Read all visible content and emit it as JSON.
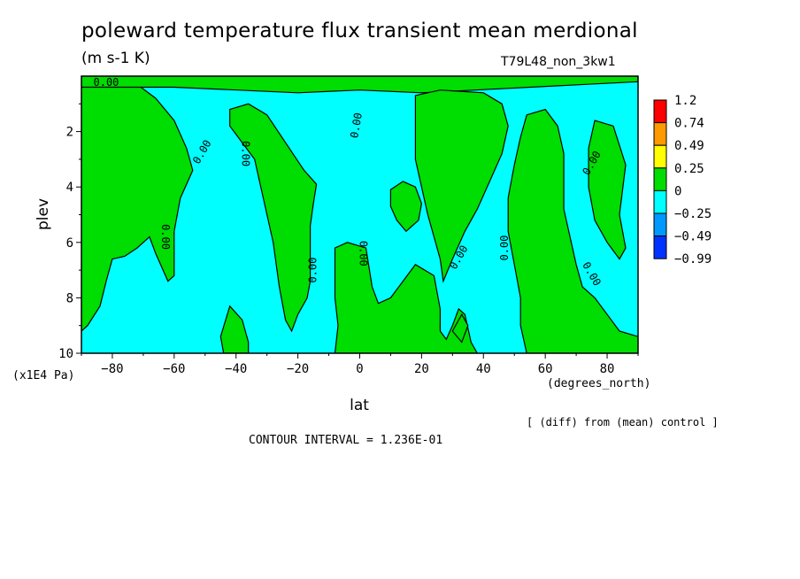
{
  "chart_data": {
    "type": "heatmap",
    "title": "poleward temperature flux transient mean merdional",
    "units": "(m s-1 K)",
    "run_label": "T79L48_non_3kw1",
    "xlabel": "lat",
    "x_units": "(degrees_north)",
    "ylabel": "plev",
    "y_units": "(x1E4 Pa)",
    "xlim": [
      -90,
      90
    ],
    "ylim": [
      10,
      0
    ],
    "x_ticks": [
      -80,
      -60,
      -40,
      -20,
      0,
      20,
      40,
      60,
      80
    ],
    "y_ticks": [
      2,
      4,
      6,
      8,
      10
    ],
    "colorbar": {
      "levels": [
        "1.2",
        "0.74",
        "0.49",
        "0.25",
        "0",
        "−0.25",
        "−0.49",
        "−0.99"
      ],
      "colors": [
        "#ff0000",
        "#ff9900",
        "#ffff00",
        "#00dd00",
        "#00ffff",
        "#0099ff",
        "#0033ff"
      ]
    },
    "contour_label": "0.00",
    "positive_regions": [
      {
        "lon_lat": [
          [
            -90,
            0.3
          ],
          [
            -72,
            0.3
          ],
          [
            -66,
            0.8
          ],
          [
            -60,
            1.6
          ],
          [
            -56,
            2.6
          ],
          [
            -54,
            3.4
          ],
          [
            -58,
            4.4
          ],
          [
            -60,
            5.6
          ],
          [
            -60,
            7.2
          ],
          [
            -62,
            7.4
          ],
          [
            -66,
            6.4
          ],
          [
            -68,
            5.8
          ],
          [
            -72,
            6.2
          ],
          [
            -76,
            6.5
          ],
          [
            -80,
            6.6
          ],
          [
            -82,
            7.4
          ],
          [
            -84,
            8.3
          ],
          [
            -88,
            9.0
          ],
          [
            -90,
            9.2
          ]
        ]
      },
      {
        "lon_lat": [
          [
            -42,
            1.2
          ],
          [
            -36,
            1.0
          ],
          [
            -30,
            1.4
          ],
          [
            -24,
            2.4
          ],
          [
            -18,
            3.4
          ],
          [
            -14,
            3.9
          ],
          [
            -15,
            4.6
          ],
          [
            -16,
            5.4
          ],
          [
            -16,
            6.4
          ],
          [
            -16,
            7.4
          ],
          [
            -17,
            8.0
          ],
          [
            -20,
            8.6
          ],
          [
            -22,
            9.2
          ],
          [
            -24,
            8.8
          ],
          [
            -26,
            7.6
          ],
          [
            -28,
            6.0
          ],
          [
            -30,
            5.0
          ],
          [
            -32,
            4.0
          ],
          [
            -34,
            3.0
          ],
          [
            -38,
            2.4
          ],
          [
            -42,
            1.8
          ]
        ]
      },
      {
        "lon_lat": [
          [
            -42,
            8.3
          ],
          [
            -38,
            8.8
          ],
          [
            -36,
            9.6
          ],
          [
            -36,
            10
          ],
          [
            -44,
            10
          ],
          [
            -45,
            9.4
          ]
        ]
      },
      {
        "lon_lat": [
          [
            -8,
            6.2
          ],
          [
            -4,
            6.0
          ],
          [
            2,
            6.2
          ],
          [
            4,
            7.6
          ],
          [
            6,
            8.2
          ],
          [
            10,
            8.0
          ],
          [
            14,
            7.4
          ],
          [
            18,
            6.8
          ],
          [
            24,
            7.2
          ],
          [
            26,
            8.4
          ],
          [
            26,
            9.2
          ],
          [
            28,
            9.5
          ],
          [
            30,
            9.0
          ],
          [
            32,
            8.4
          ],
          [
            34,
            8.6
          ],
          [
            36,
            9.6
          ],
          [
            38,
            10
          ],
          [
            -8,
            10
          ],
          [
            -7,
            9.0
          ],
          [
            -8,
            8.0
          ]
        ]
      },
      {
        "lon_lat": [
          [
            10,
            4.1
          ],
          [
            14,
            3.8
          ],
          [
            18,
            4.0
          ],
          [
            20,
            4.6
          ],
          [
            19,
            5.2
          ],
          [
            15,
            5.6
          ],
          [
            12,
            5.2
          ],
          [
            10,
            4.7
          ]
        ]
      },
      {
        "lon_lat": [
          [
            -90,
            0
          ],
          [
            90,
            0
          ],
          [
            90,
            0.2
          ],
          [
            20,
            0.6
          ],
          [
            0,
            0.5
          ],
          [
            -20,
            0.6
          ],
          [
            -60,
            0.4
          ],
          [
            -90,
            0.4
          ]
        ]
      },
      {
        "lon_lat": [
          [
            30,
            9.2
          ],
          [
            33,
            8.6
          ],
          [
            35,
            9.0
          ],
          [
            33,
            9.6
          ]
        ]
      },
      {
        "lon_lat": [
          [
            18,
            0.7
          ],
          [
            26,
            0.5
          ],
          [
            40,
            0.6
          ],
          [
            46,
            1.0
          ],
          [
            48,
            1.8
          ],
          [
            46,
            2.8
          ],
          [
            42,
            3.8
          ],
          [
            38,
            4.8
          ],
          [
            34,
            5.6
          ],
          [
            30,
            6.6
          ],
          [
            27,
            7.4
          ],
          [
            26,
            6.6
          ],
          [
            24,
            5.8
          ],
          [
            22,
            5.0
          ],
          [
            20,
            4.0
          ],
          [
            18,
            3.0
          ],
          [
            18,
            2.0
          ],
          [
            18,
            1.2
          ]
        ]
      },
      {
        "lon_lat": [
          [
            54,
            1.4
          ],
          [
            60,
            1.2
          ],
          [
            64,
            1.8
          ],
          [
            66,
            2.8
          ],
          [
            66,
            3.8
          ],
          [
            66,
            4.8
          ],
          [
            68,
            5.8
          ],
          [
            70,
            6.8
          ],
          [
            72,
            7.6
          ],
          [
            76,
            8.0
          ],
          [
            80,
            8.6
          ],
          [
            84,
            9.2
          ],
          [
            90,
            9.4
          ],
          [
            90,
            10
          ],
          [
            54,
            10
          ],
          [
            52,
            9.0
          ],
          [
            52,
            8.0
          ],
          [
            50,
            6.8
          ],
          [
            48,
            5.6
          ],
          [
            48,
            4.4
          ],
          [
            50,
            3.2
          ],
          [
            52,
            2.2
          ]
        ]
      },
      {
        "lon_lat": [
          [
            76,
            1.6
          ],
          [
            82,
            1.8
          ],
          [
            86,
            3.2
          ],
          [
            84,
            5.0
          ],
          [
            86,
            6.2
          ],
          [
            84,
            6.6
          ],
          [
            80,
            6.0
          ],
          [
            76,
            5.2
          ],
          [
            74,
            4.0
          ],
          [
            74,
            2.6
          ]
        ]
      }
    ]
  }
}
